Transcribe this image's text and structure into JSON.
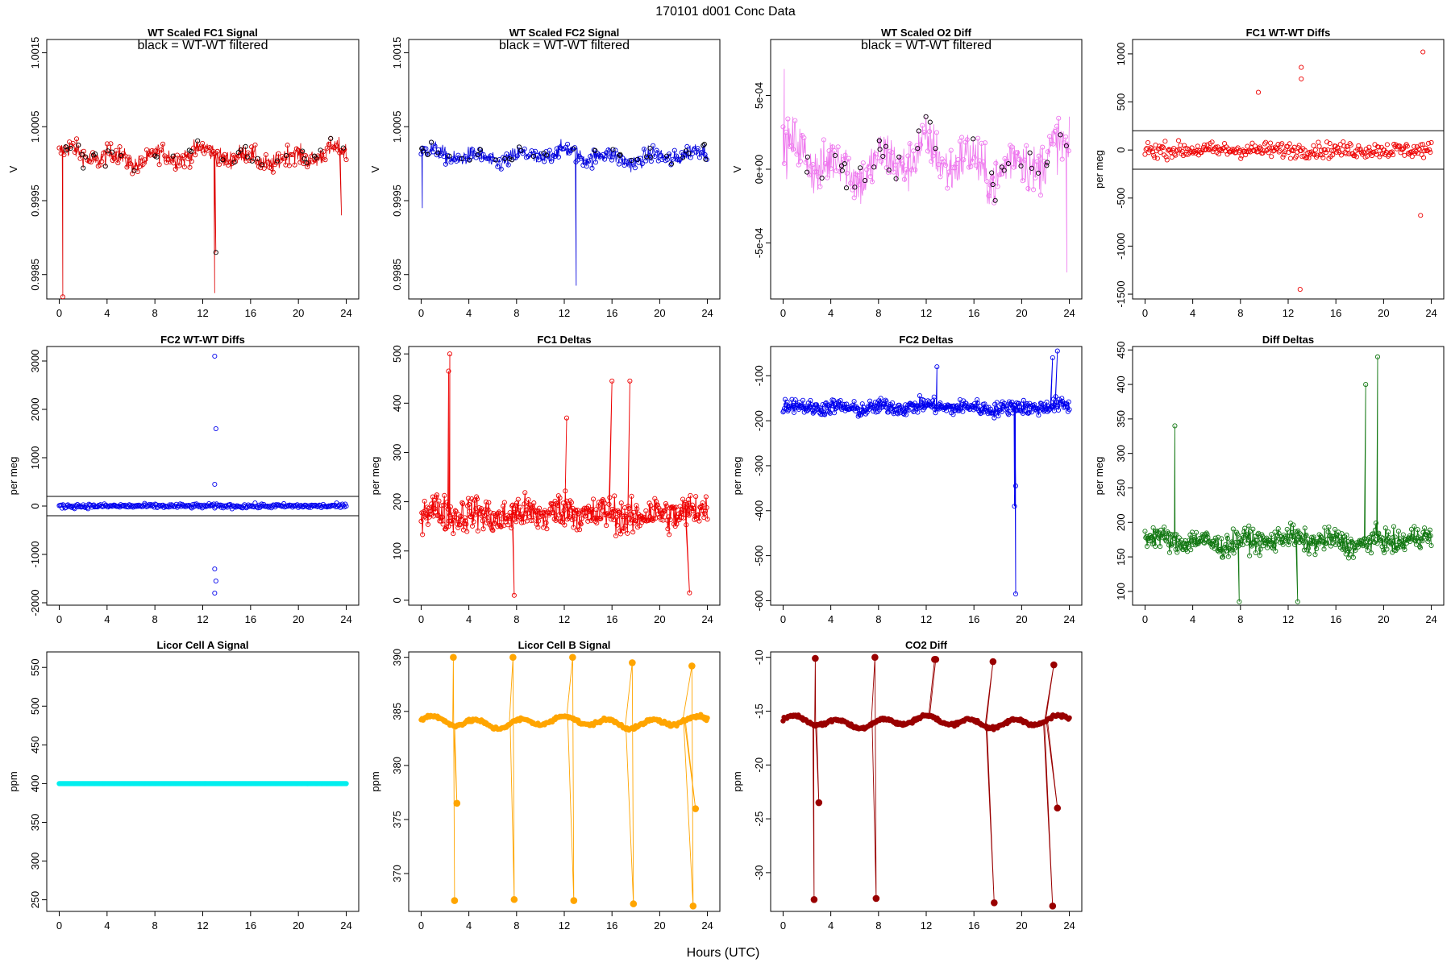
{
  "header": "170101    d001    Conc Data",
  "x_label": "Hours (UTC)",
  "chart_data": [
    {
      "id": "p1",
      "type": "line",
      "title": "WT Scaled FC1 Signal",
      "annotation": "black = WT-WT filtered",
      "ylabel": "V",
      "color": "#dd0000",
      "xlim": [
        0,
        24
      ],
      "ylim": [
        0.99817,
        1.00168
      ],
      "xticks": [
        0,
        4,
        8,
        12,
        16,
        20,
        24
      ],
      "yticks": [
        0.9985,
        0.9995,
        1.0005,
        1.0015
      ],
      "ytick_labels": [
        "0.9985",
        "0.9995",
        "1.0005",
        "1.0015"
      ],
      "series": [
        {
          "name": "FC1 signal",
          "base": 1.0001,
          "amp": 0.00012,
          "noise": 0.00013,
          "pts": 480,
          "mode": "band",
          "hlines": [],
          "events": [
            {
              "x": 13.0,
              "y": 0.99825
            },
            {
              "x": 13.1,
              "y": 0.9988
            },
            {
              "x": 23.6,
              "y": 0.9993
            },
            {
              "x": 0.3,
              "y": 0.9982
            }
          ]
        }
      ]
    },
    {
      "id": "p2",
      "type": "line",
      "title": "WT Scaled FC2 Signal",
      "annotation": "black = WT-WT filtered",
      "ylabel": "V",
      "color": "#0000dd",
      "xlim": [
        0,
        24
      ],
      "ylim": [
        0.99817,
        1.00168
      ],
      "xticks": [
        0,
        4,
        8,
        12,
        16,
        20,
        24
      ],
      "yticks": [
        0.9985,
        0.9995,
        1.0005,
        1.0015
      ],
      "ytick_labels": [
        "0.9985",
        "0.9995",
        "1.0005",
        "1.0015"
      ],
      "series": [
        {
          "name": "FC2 signal",
          "base": 1.0001,
          "amp": 0.0001,
          "noise": 0.00011,
          "pts": 480,
          "mode": "band",
          "hlines": [],
          "events": [
            {
              "x": 13.0,
              "y": 0.99835
            },
            {
              "x": 0.1,
              "y": 0.9994
            }
          ]
        }
      ]
    },
    {
      "id": "p3",
      "type": "line",
      "title": "WT Scaled O2 Diff",
      "annotation": "black = WT-WT filtered",
      "ylabel": "V",
      "color": "#ee77ee",
      "xlim": [
        0,
        24
      ],
      "ylim": [
        -0.00088,
        0.00088
      ],
      "xticks": [
        0,
        4,
        8,
        12,
        16,
        20,
        24
      ],
      "yticks": [
        -0.0005,
        0,
        0.0005
      ],
      "ytick_labels": [
        "-5e-04",
        "0e+00",
        "5e-04"
      ],
      "series": [
        {
          "name": "O2 diff",
          "base": 5e-05,
          "amp": 0.00014,
          "noise": 0.00017,
          "pts": 480,
          "mode": "band",
          "hlines": [],
          "events": [
            {
              "x": 0.1,
              "y": 0.00068
            },
            {
              "x": 23.8,
              "y": -0.0007
            }
          ]
        }
      ]
    },
    {
      "id": "p4",
      "type": "scatter",
      "title": "FC1 WT-WT Diffs",
      "annotation": "",
      "ylabel": "per meg",
      "color": "#ee0000",
      "xlim": [
        0,
        24
      ],
      "ylim": [
        -1550,
        1150
      ],
      "xticks": [
        0,
        4,
        8,
        12,
        16,
        20,
        24
      ],
      "yticks": [
        -1500,
        -1000,
        -500,
        0,
        500,
        1000
      ],
      "ytick_labels": [
        "-1500",
        "-1000",
        "-500",
        "0",
        "500",
        "1000"
      ],
      "series": [
        {
          "name": "FC1 diffs",
          "base": 0,
          "amp": 0,
          "noise": 80,
          "pts": 300,
          "mode": "points",
          "hlines": [
            200,
            -200
          ],
          "events": [
            {
              "x": 13.0,
              "y": -1450
            },
            {
              "x": 13.1,
              "y": 860
            },
            {
              "x": 13.1,
              "y": 740
            },
            {
              "x": 23.3,
              "y": 1020
            },
            {
              "x": 23.1,
              "y": -680
            },
            {
              "x": 9.5,
              "y": 600
            }
          ]
        }
      ]
    },
    {
      "id": "p5",
      "type": "scatter",
      "title": "FC2 WT-WT Diffs",
      "annotation": "",
      "ylabel": "per meg",
      "color": "#0000ee",
      "xlim": [
        0,
        24
      ],
      "ylim": [
        -2050,
        3300
      ],
      "xticks": [
        0,
        4,
        8,
        12,
        16,
        20,
        24
      ],
      "yticks": [
        -2000,
        -1000,
        0,
        1000,
        2000,
        3000
      ],
      "ytick_labels": [
        "-2000",
        "-1000",
        "0",
        "1000",
        "2000",
        "3000"
      ],
      "series": [
        {
          "name": "FC2 diffs",
          "base": 0,
          "amp": 0,
          "noise": 45,
          "pts": 300,
          "mode": "points",
          "hlines": [
            200,
            -200
          ],
          "events": [
            {
              "x": 13.0,
              "y": 3100
            },
            {
              "x": 13.1,
              "y": 1600
            },
            {
              "x": 13.0,
              "y": 450
            },
            {
              "x": 13.0,
              "y": -1300
            },
            {
              "x": 13.1,
              "y": -1550
            },
            {
              "x": 13.0,
              "y": -1800
            }
          ]
        }
      ]
    },
    {
      "id": "p6",
      "type": "line",
      "title": "FC1 Deltas",
      "annotation": "",
      "ylabel": "per meg",
      "color": "#ee0000",
      "xlim": [
        0,
        24
      ],
      "ylim": [
        -10,
        515
      ],
      "xticks": [
        0,
        4,
        8,
        12,
        16,
        20,
        24
      ],
      "yticks": [
        0,
        100,
        200,
        300,
        400,
        500
      ],
      "ytick_labels": [
        "0",
        "100",
        "200",
        "300",
        "400",
        "500"
      ],
      "series": [
        {
          "name": "FC1 deltas",
          "base": 175,
          "amp": 12,
          "noise": 35,
          "pts": 420,
          "mode": "linepts",
          "hlines": [],
          "events": [
            {
              "x": 2.4,
              "y": 500
            },
            {
              "x": 2.3,
              "y": 465
            },
            {
              "x": 12.2,
              "y": 370
            },
            {
              "x": 17.5,
              "y": 445
            },
            {
              "x": 16.0,
              "y": 445
            },
            {
              "x": 7.8,
              "y": 10
            },
            {
              "x": 22.5,
              "y": 15
            }
          ]
        }
      ]
    },
    {
      "id": "p7",
      "type": "line",
      "title": "FC2 Deltas",
      "annotation": "",
      "ylabel": "per meg",
      "color": "#0000ee",
      "xlim": [
        0,
        24
      ],
      "ylim": [
        -610,
        -35
      ],
      "xticks": [
        0,
        4,
        8,
        12,
        16,
        20,
        24
      ],
      "yticks": [
        -600,
        -500,
        -400,
        -300,
        -200,
        -100
      ],
      "ytick_labels": [
        "-600",
        "-500",
        "-400",
        "-300",
        "-200",
        "-100"
      ],
      "series": [
        {
          "name": "FC2 deltas",
          "base": -170,
          "amp": 6,
          "noise": 16,
          "pts": 420,
          "mode": "linepts",
          "hlines": [],
          "events": [
            {
              "x": 19.5,
              "y": -585
            },
            {
              "x": 19.4,
              "y": -390
            },
            {
              "x": 19.5,
              "y": -345
            },
            {
              "x": 23.0,
              "y": -45
            },
            {
              "x": 22.6,
              "y": -60
            },
            {
              "x": 12.9,
              "y": -80
            }
          ]
        }
      ]
    },
    {
      "id": "p8",
      "type": "line",
      "title": "Diff Deltas",
      "annotation": "",
      "ylabel": "per meg",
      "color": "#117711",
      "xlim": [
        0,
        24
      ],
      "ylim": [
        80,
        455
      ],
      "xticks": [
        0,
        4,
        8,
        12,
        16,
        20,
        24
      ],
      "yticks": [
        100,
        150,
        200,
        250,
        300,
        350,
        400,
        450
      ],
      "ytick_labels": [
        "100",
        "150",
        "200",
        "250",
        "300",
        "350",
        "400",
        "450"
      ],
      "series": [
        {
          "name": "diff deltas",
          "base": 173,
          "amp": 8,
          "noise": 16,
          "pts": 420,
          "mode": "linepts",
          "hlines": [],
          "events": [
            {
              "x": 19.5,
              "y": 440
            },
            {
              "x": 2.5,
              "y": 340
            },
            {
              "x": 18.5,
              "y": 400
            },
            {
              "x": 12.8,
              "y": 85
            },
            {
              "x": 7.9,
              "y": 85
            }
          ]
        }
      ]
    },
    {
      "id": "p9",
      "type": "line",
      "title": "Licor Cell A Signal",
      "annotation": "",
      "ylabel": "ppm",
      "color": "#00eeee",
      "xlim": [
        0,
        24
      ],
      "ylim": [
        235,
        570
      ],
      "xticks": [
        0,
        4,
        8,
        12,
        16,
        20,
        24
      ],
      "yticks": [
        250,
        300,
        350,
        400,
        450,
        500,
        550
      ],
      "ytick_labels": [
        "250",
        "300",
        "350",
        "400",
        "450",
        "500",
        "550"
      ],
      "series": [
        {
          "name": "cell A",
          "base": 400,
          "amp": 0,
          "noise": 0,
          "pts": 300,
          "mode": "dense",
          "hlines": [],
          "events": []
        }
      ]
    },
    {
      "id": "p10",
      "type": "line",
      "title": "Licor Cell B Signal",
      "annotation": "",
      "ylabel": "ppm",
      "color": "#ffa500",
      "xlim": [
        0,
        24
      ],
      "ylim": [
        366.5,
        390.5
      ],
      "xticks": [
        0,
        4,
        8,
        12,
        16,
        20,
        24
      ],
      "yticks": [
        370,
        375,
        380,
        385,
        390
      ],
      "ytick_labels": [
        "370",
        "375",
        "380",
        "385",
        "390"
      ],
      "series": [
        {
          "name": "cell B",
          "base": 384,
          "amp": 0.6,
          "noise": 0.15,
          "pts": 300,
          "mode": "dense",
          "hlines": [],
          "events": [
            {
              "x": 2.7,
              "y": 390
            },
            {
              "x": 2.8,
              "y": 367.5
            },
            {
              "x": 3.0,
              "y": 376.5
            },
            {
              "x": 7.7,
              "y": 390
            },
            {
              "x": 7.8,
              "y": 367.6
            },
            {
              "x": 12.7,
              "y": 390
            },
            {
              "x": 12.8,
              "y": 367.5
            },
            {
              "x": 17.7,
              "y": 389.5
            },
            {
              "x": 17.8,
              "y": 367.2
            },
            {
              "x": 22.7,
              "y": 389.2
            },
            {
              "x": 22.8,
              "y": 367
            },
            {
              "x": 23.0,
              "y": 376
            }
          ]
        }
      ]
    },
    {
      "id": "p11",
      "type": "line",
      "title": "CO2 Diff",
      "annotation": "",
      "ylabel": "ppm",
      "color": "#990000",
      "xlim": [
        0,
        24
      ],
      "ylim": [
        -33.6,
        -9.5
      ],
      "xticks": [
        0,
        4,
        8,
        12,
        16,
        20,
        24
      ],
      "yticks": [
        -30,
        -25,
        -20,
        -15,
        -10
      ],
      "ytick_labels": [
        "-30",
        "-25",
        "-20",
        "-15",
        "-10"
      ],
      "series": [
        {
          "name": "CO2 diff",
          "base": -16,
          "amp": 0.6,
          "noise": 0.15,
          "pts": 300,
          "mode": "dense",
          "hlines": [],
          "events": [
            {
              "x": 2.7,
              "y": -10.1
            },
            {
              "x": 2.6,
              "y": -32.5
            },
            {
              "x": 3.0,
              "y": -23.5
            },
            {
              "x": 7.7,
              "y": -10
            },
            {
              "x": 7.8,
              "y": -32.4
            },
            {
              "x": 12.7,
              "y": -10.2
            },
            {
              "x": 12.8,
              "y": -10.2
            },
            {
              "x": 17.6,
              "y": -10.4
            },
            {
              "x": 17.7,
              "y": -32.8
            },
            {
              "x": 22.7,
              "y": -10.7
            },
            {
              "x": 22.6,
              "y": -33.1
            },
            {
              "x": 23.0,
              "y": -24
            }
          ]
        }
      ]
    }
  ]
}
